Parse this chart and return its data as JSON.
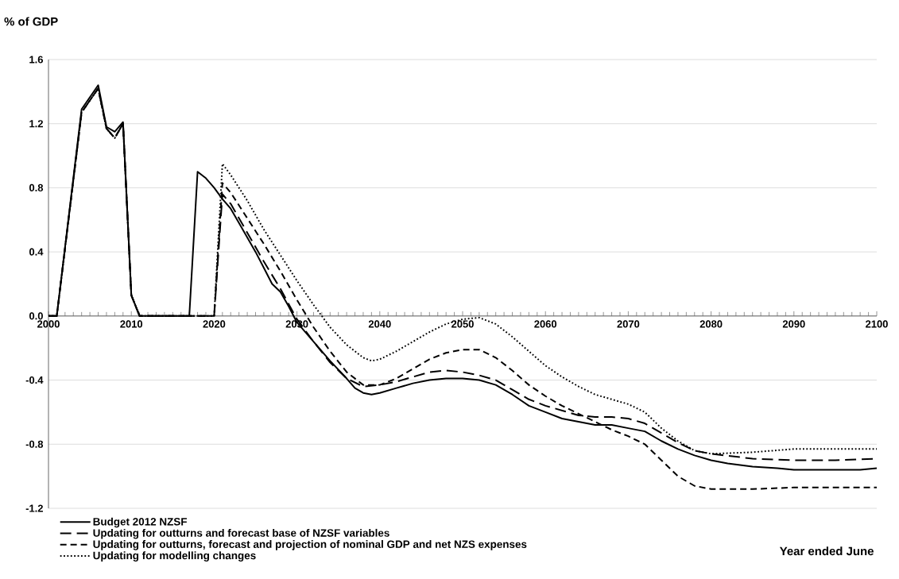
{
  "chart_data": {
    "type": "line",
    "ylabel": "% of GDP",
    "xlabel": "Year ended June",
    "xlim": [
      2000,
      2100
    ],
    "xticks": [
      2000,
      2010,
      2020,
      2030,
      2040,
      2050,
      2060,
      2070,
      2080,
      2090,
      2100
    ],
    "ylim": [
      -1.2,
      1.6
    ],
    "yticks": [
      -1.2,
      -0.8,
      -0.4,
      {
        "value": 0,
        "label": "0.0"
      },
      0.4,
      0.8,
      1.2,
      1.6
    ],
    "grid": "y",
    "legend": "bottom left",
    "marker": "none",
    "series": [
      {
        "name": "Budget 2012 NZSF",
        "color": "#000000",
        "line_style": "solid",
        "x": [
          2000,
          2001,
          2004,
          2006,
          2007,
          2008,
          2009,
          2010,
          2011,
          2017,
          2018,
          2019,
          2020,
          2021,
          2022,
          2023,
          2024,
          2025,
          2026,
          2027,
          2028,
          2029,
          2030,
          2032,
          2034,
          2036,
          2037,
          2038,
          2039,
          2040,
          2042,
          2044,
          2046,
          2048,
          2050,
          2052,
          2054,
          2056,
          2058,
          2060,
          2062,
          2064,
          2066,
          2068,
          2070,
          2072,
          2074,
          2076,
          2078,
          2080,
          2082,
          2085,
          2088,
          2090,
          2095,
          2098,
          2100
        ],
        "values": [
          0,
          0,
          1.29,
          1.44,
          1.18,
          1.15,
          1.21,
          0.13,
          0,
          0,
          0.9,
          0.86,
          0.8,
          0.73,
          0.67,
          0.58,
          0.49,
          0.4,
          0.3,
          0.2,
          0.15,
          0.06,
          -0.04,
          -0.16,
          -0.28,
          -0.39,
          -0.45,
          -0.48,
          -0.49,
          -0.48,
          -0.45,
          -0.42,
          -0.4,
          -0.39,
          -0.39,
          -0.4,
          -0.43,
          -0.49,
          -0.56,
          -0.6,
          -0.64,
          -0.66,
          -0.68,
          -0.68,
          -0.7,
          -0.72,
          -0.78,
          -0.83,
          -0.87,
          -0.9,
          -0.92,
          -0.94,
          -0.95,
          -0.96,
          -0.96,
          -0.96,
          -0.95
        ]
      },
      {
        "name": "Updating for outturns and forecast base of NZSF variables",
        "color": "#000000",
        "line_style": "dashed",
        "x": [
          2000,
          2001,
          2004,
          2006,
          2007,
          2008,
          2009,
          2010,
          2011,
          2020,
          2021,
          2022,
          2024,
          2026,
          2028,
          2030,
          2032,
          2034,
          2036,
          2038,
          2040,
          2042,
          2044,
          2046,
          2048,
          2050,
          2052,
          2054,
          2056,
          2058,
          2060,
          2062,
          2064,
          2066,
          2068,
          2070,
          2072,
          2074,
          2076,
          2078,
          2080,
          2085,
          2090,
          2095,
          2100
        ],
        "values": [
          0,
          0,
          1.27,
          1.42,
          1.17,
          1.11,
          1.2,
          0.13,
          0,
          0,
          0.76,
          0.7,
          0.52,
          0.34,
          0.17,
          -0.02,
          -0.16,
          -0.29,
          -0.39,
          -0.44,
          -0.43,
          -0.41,
          -0.38,
          -0.35,
          -0.34,
          -0.35,
          -0.37,
          -0.4,
          -0.46,
          -0.52,
          -0.56,
          -0.59,
          -0.62,
          -0.63,
          -0.63,
          -0.64,
          -0.67,
          -0.73,
          -0.79,
          -0.84,
          -0.86,
          -0.89,
          -0.9,
          -0.9,
          -0.89
        ]
      },
      {
        "name": "Updating for outturns, forecast and projection of nominal GDP and net NZS expenses",
        "color": "#000000",
        "line_style": "dashed",
        "x": [
          2000,
          2001,
          2004,
          2006,
          2007,
          2008,
          2009,
          2010,
          2011,
          2020,
          2021,
          2022,
          2024,
          2026,
          2028,
          2030,
          2032,
          2034,
          2036,
          2038,
          2040,
          2042,
          2044,
          2046,
          2048,
          2050,
          2052,
          2054,
          2056,
          2058,
          2060,
          2062,
          2064,
          2066,
          2068,
          2070,
          2072,
          2074,
          2076,
          2078,
          2080,
          2085,
          2090,
          2095,
          2100
        ],
        "values": [
          0,
          0,
          1.27,
          1.42,
          1.17,
          1.11,
          1.2,
          0.13,
          0,
          0,
          0.83,
          0.77,
          0.61,
          0.45,
          0.28,
          0.1,
          -0.07,
          -0.22,
          -0.35,
          -0.43,
          -0.43,
          -0.39,
          -0.33,
          -0.27,
          -0.23,
          -0.21,
          -0.21,
          -0.26,
          -0.34,
          -0.43,
          -0.5,
          -0.56,
          -0.61,
          -0.66,
          -0.71,
          -0.75,
          -0.8,
          -0.9,
          -1.0,
          -1.06,
          -1.08,
          -1.08,
          -1.07,
          -1.07,
          -1.07
        ]
      },
      {
        "name": "Updating for modelling changes",
        "color": "#000000",
        "line_style": "dotted",
        "x": [
          2000,
          2001,
          2004,
          2006,
          2007,
          2008,
          2009,
          2010,
          2011,
          2020,
          2021,
          2022,
          2024,
          2026,
          2028,
          2030,
          2032,
          2034,
          2036,
          2038,
          2039,
          2040,
          2042,
          2044,
          2046,
          2048,
          2050,
          2052,
          2054,
          2056,
          2058,
          2060,
          2062,
          2064,
          2066,
          2068,
          2070,
          2072,
          2074,
          2076,
          2078,
          2080,
          2085,
          2090,
          2100
        ],
        "values": [
          0,
          0,
          1.27,
          1.42,
          1.17,
          1.11,
          1.2,
          0.13,
          0,
          0,
          0.95,
          0.88,
          0.72,
          0.54,
          0.38,
          0.22,
          0.07,
          -0.07,
          -0.18,
          -0.26,
          -0.28,
          -0.27,
          -0.22,
          -0.16,
          -0.1,
          -0.05,
          -0.02,
          -0.01,
          -0.05,
          -0.13,
          -0.22,
          -0.31,
          -0.38,
          -0.44,
          -0.49,
          -0.52,
          -0.55,
          -0.6,
          -0.7,
          -0.78,
          -0.84,
          -0.86,
          -0.85,
          -0.83,
          -0.83
        ]
      }
    ]
  }
}
